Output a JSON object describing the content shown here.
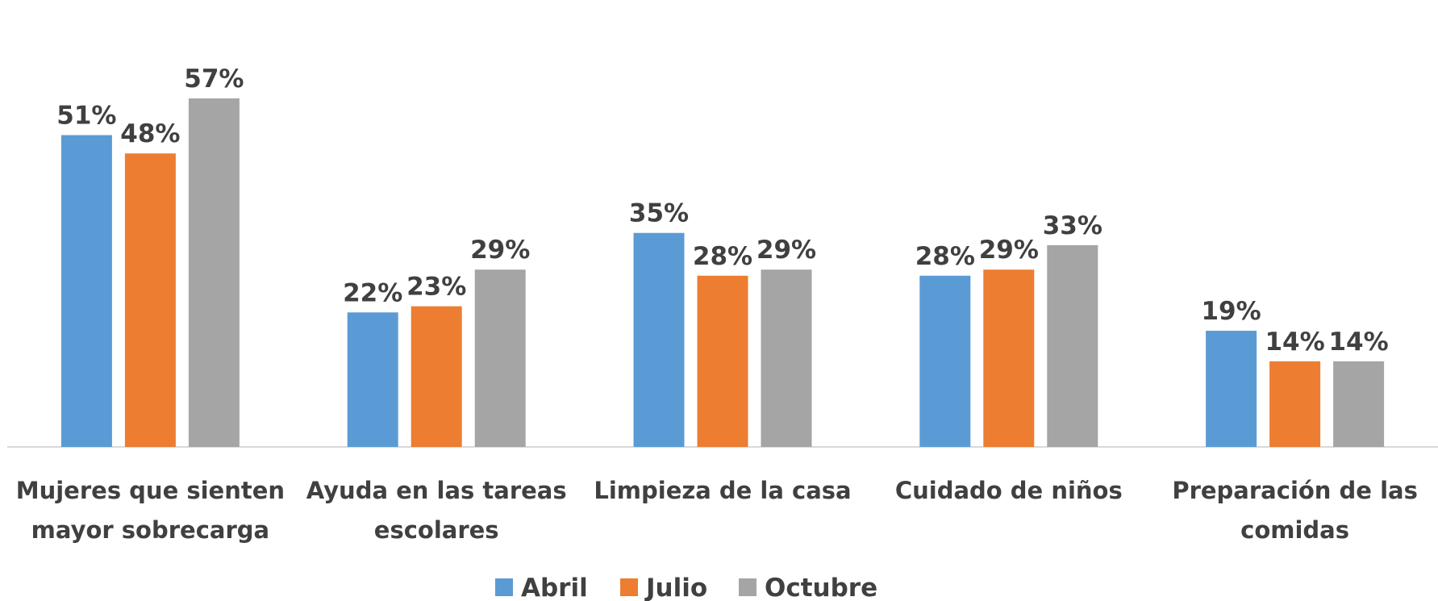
{
  "chart_data": {
    "type": "bar",
    "categories": [
      "Mujeres que sienten mayor sobrecarga",
      "Ayuda en las tareas escolares",
      "Limpieza de la casa",
      "Cuidado de niños",
      "Preparación de las comidas"
    ],
    "series": [
      {
        "name": "Abril",
        "color": "#5b9bd5",
        "values": [
          51,
          22,
          35,
          28,
          19
        ],
        "value_labels": [
          "51%",
          "22%",
          "35%",
          "28%",
          "19%"
        ]
      },
      {
        "name": "Julio",
        "color": "#ed7d31",
        "values": [
          48,
          23,
          28,
          29,
          14
        ],
        "value_labels": [
          "48%",
          "23%",
          "28%",
          "29%",
          "14%"
        ]
      },
      {
        "name": "Octubre",
        "color": "#a5a5a5",
        "values": [
          57,
          29,
          29,
          33,
          14
        ],
        "value_labels": [
          "57%",
          "29%",
          "29%",
          "33%",
          "14%"
        ]
      }
    ],
    "legend": "bottom"
  }
}
